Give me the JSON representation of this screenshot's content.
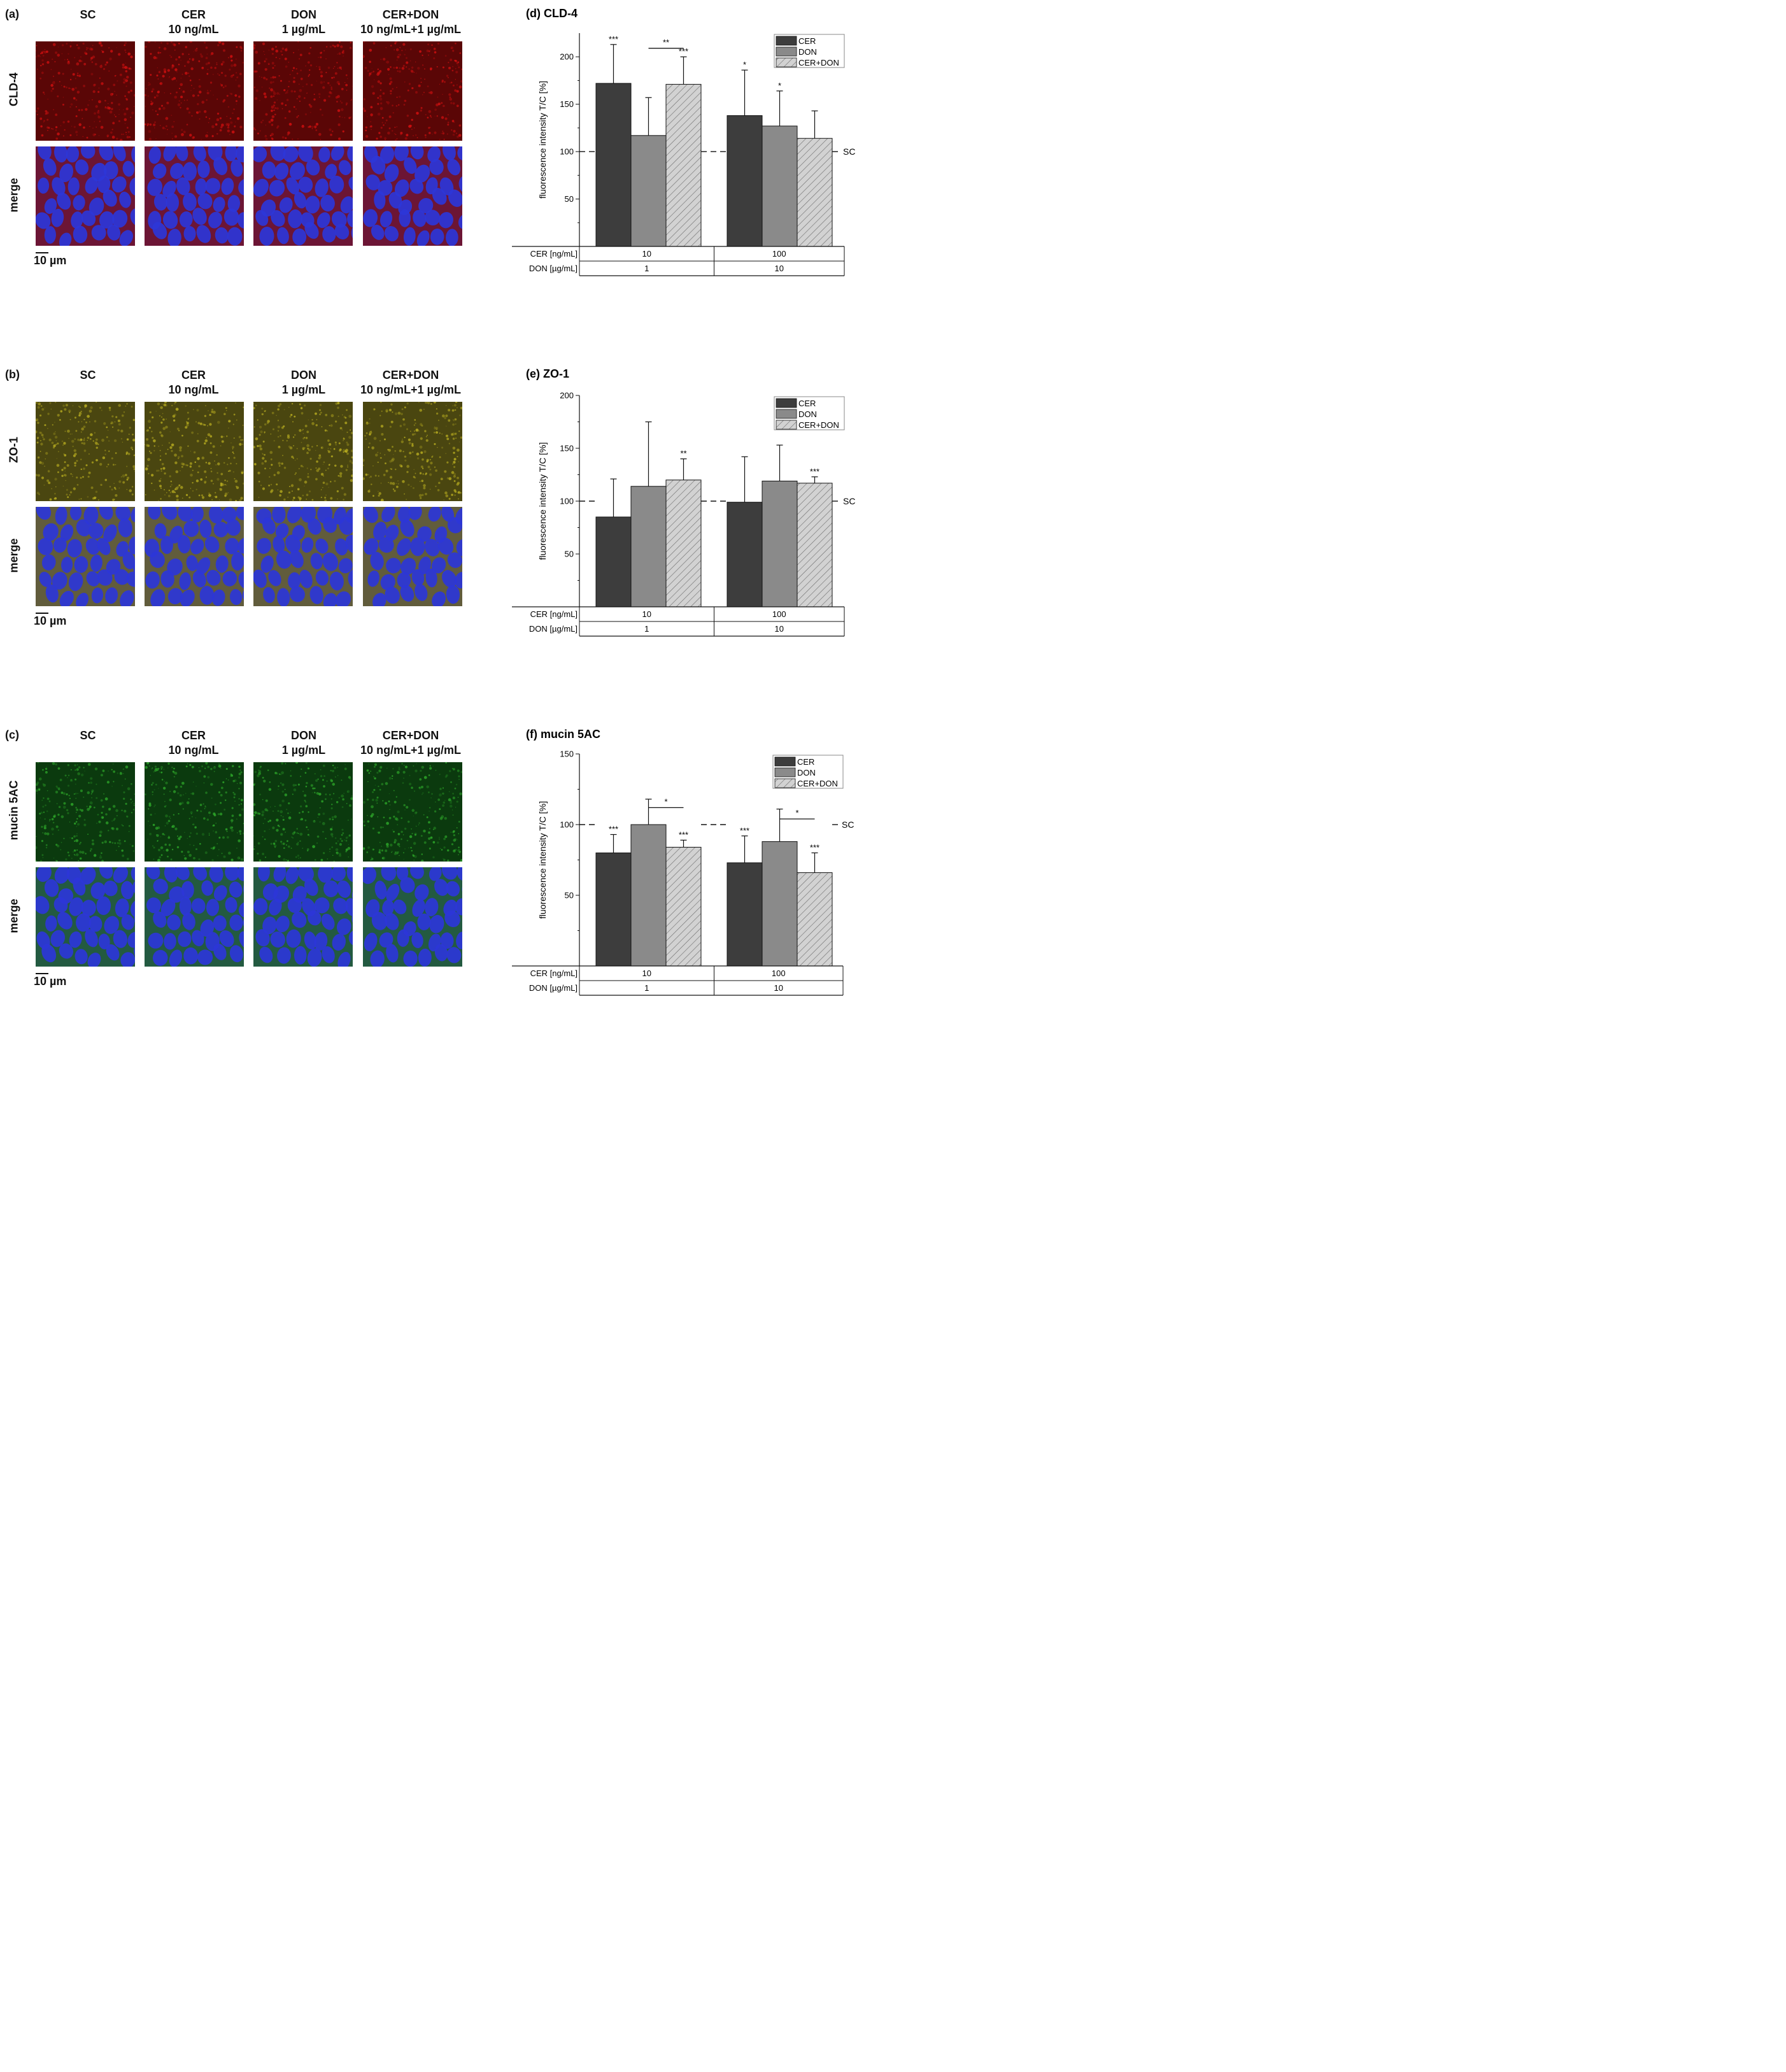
{
  "rows": [
    {
      "letter": "(a)",
      "marker": "CLD-4",
      "merge_label": "merge",
      "columns": [
        {
          "l1": "SC",
          "l2": ""
        },
        {
          "l1": "CER",
          "l2": "10 ng/mL"
        },
        {
          "l1": "DON",
          "l2": "1 µg/mL"
        },
        {
          "l1": "CER+DON",
          "l2": "10 ng/mL+1 µg/mL"
        }
      ],
      "scalebar": "10 µm",
      "stain_color": "#d01010",
      "stain_bg": "#5a0606"
    },
    {
      "letter": "(b)",
      "marker": "ZO-1",
      "merge_label": "merge",
      "columns": [
        {
          "l1": "SC",
          "l2": ""
        },
        {
          "l1": "CER",
          "l2": "10 ng/mL"
        },
        {
          "l1": "DON",
          "l2": "1 µg/mL"
        },
        {
          "l1": "CER+DON",
          "l2": "10 ng/mL+1 µg/mL"
        }
      ],
      "scalebar": "10 µm",
      "stain_color": "#b8ad20",
      "stain_bg": "#4a4610"
    },
    {
      "letter": "(c)",
      "marker": "mucin 5AC",
      "merge_label": "merge",
      "columns": [
        {
          "l1": "SC",
          "l2": ""
        },
        {
          "l1": "CER",
          "l2": "10 ng/mL"
        },
        {
          "l1": "DON",
          "l2": "1 µg/mL"
        },
        {
          "l1": "CER+DON",
          "l2": "10 ng/mL+1 µg/mL"
        }
      ],
      "scalebar": "10 µm",
      "stain_color": "#2ea82a",
      "stain_bg": "#0b3a0e"
    }
  ],
  "chart_data": [
    {
      "type": "bar",
      "title": "(d) CLD-4",
      "ylabel": "fluorescence intensity T/C [%]",
      "ylim": [
        0,
        225
      ],
      "yticks": [
        50,
        100,
        150,
        200
      ],
      "reference_line": {
        "value": 100,
        "label": "SC"
      },
      "legend": [
        "CER",
        "DON",
        "CER+DON"
      ],
      "legend_position": "top-right",
      "series_colors": [
        "#3d3d3d",
        "#8a8a8a",
        "#cfcfcf"
      ],
      "groups": [
        {
          "cer": "10",
          "don": "1",
          "values": [
            172,
            117,
            171
          ],
          "errors": [
            41,
            40,
            29
          ],
          "stars": [
            "***",
            "",
            "***"
          ]
        },
        {
          "cer": "100",
          "don": "10",
          "values": [
            138,
            127,
            114
          ],
          "errors": [
            48,
            37,
            29
          ],
          "stars": [
            "*",
            "*",
            ""
          ]
        }
      ],
      "brackets": [
        {
          "group": 0,
          "from": 1,
          "to": 2,
          "y": 209,
          "label": "**"
        }
      ],
      "table_row_labels": [
        "CER [ng/mL]",
        "DON [µg/mL]"
      ]
    },
    {
      "type": "bar",
      "title": "(e) ZO-1",
      "ylabel": "fluorescence intensity T/C [%]",
      "ylim": [
        0,
        200
      ],
      "yticks": [
        50,
        100,
        150,
        200
      ],
      "reference_line": {
        "value": 100,
        "label": "SC"
      },
      "legend": [
        "CER",
        "DON",
        "CER+DON"
      ],
      "legend_position": "top-right",
      "series_colors": [
        "#3d3d3d",
        "#8a8a8a",
        "#cfcfcf"
      ],
      "groups": [
        {
          "cer": "10",
          "don": "1",
          "values": [
            85,
            114,
            120
          ],
          "errors": [
            36,
            61,
            20
          ],
          "stars": [
            "",
            "",
            "**"
          ]
        },
        {
          "cer": "100",
          "don": "10",
          "values": [
            99,
            119,
            117
          ],
          "errors": [
            43,
            34,
            6
          ],
          "stars": [
            "",
            "",
            "***"
          ]
        }
      ],
      "brackets": [],
      "table_row_labels": [
        "CER [ng/mL]",
        "DON [µg/mL]"
      ]
    },
    {
      "type": "bar",
      "title": "(f) mucin 5AC",
      "ylabel": "fluorescence intensity T/C [%]",
      "ylim": [
        0,
        150
      ],
      "yticks": [
        50,
        100,
        150
      ],
      "reference_line": {
        "value": 100,
        "label": "SC"
      },
      "legend": [
        "CER",
        "DON",
        "CER+DON"
      ],
      "legend_position": "top-right",
      "series_colors": [
        "#3d3d3d",
        "#8a8a8a",
        "#cfcfcf"
      ],
      "groups": [
        {
          "cer": "10",
          "don": "1",
          "values": [
            80,
            100,
            84
          ],
          "errors": [
            13,
            18,
            5
          ],
          "stars": [
            "***",
            "",
            "***"
          ]
        },
        {
          "cer": "100",
          "don": "10",
          "values": [
            73,
            88,
            66
          ],
          "errors": [
            19,
            23,
            14
          ],
          "stars": [
            "***",
            "",
            "***"
          ]
        }
      ],
      "brackets": [
        {
          "group": 0,
          "from": 1,
          "to": 2,
          "y": 112,
          "label": "*"
        },
        {
          "group": 1,
          "from": 1,
          "to": 2,
          "y": 104,
          "label": "*"
        }
      ],
      "table_row_labels": [
        "CER [ng/mL]",
        "DON [µg/mL]"
      ]
    }
  ]
}
